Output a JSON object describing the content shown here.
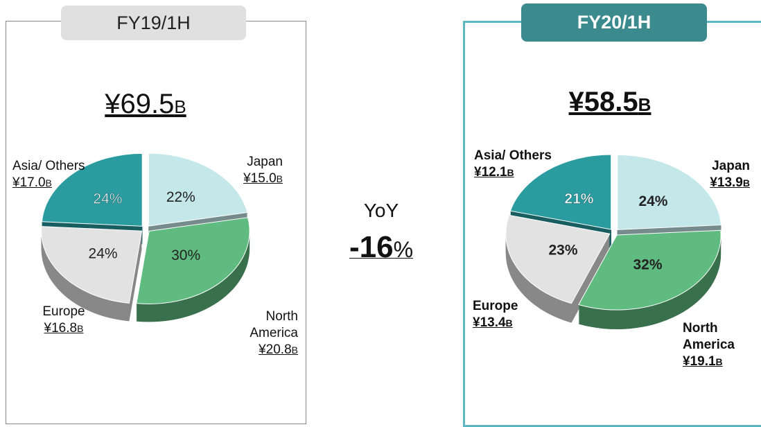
{
  "chart_data": [
    {
      "type": "pie",
      "title": "FY19/1H",
      "total": "¥69.5",
      "amount_unit": "B",
      "categories": [
        "Japan",
        "North America",
        "Europe",
        "Asia/ Others"
      ],
      "values": [
        22,
        30,
        24,
        24
      ],
      "value_labels": [
        "22%",
        "30%",
        "24%",
        "24%"
      ],
      "amounts": [
        "¥15.0",
        "¥20.8",
        "¥16.8",
        "¥17.0"
      ],
      "colors": [
        "#c4e7ea",
        "#5fbb80",
        "#e2e2e2",
        "#2a9ca0"
      ]
    },
    {
      "type": "pie",
      "title": "FY20/1H",
      "total": "¥58.5",
      "amount_unit": "B",
      "categories": [
        "Japan",
        "North America",
        "Europe",
        "Asia/ Others"
      ],
      "values": [
        24,
        32,
        23,
        21
      ],
      "value_labels": [
        "24%",
        "32%",
        "23%",
        "21%"
      ],
      "amounts": [
        "¥13.9",
        "¥19.1",
        "¥13.4",
        "¥12.1"
      ],
      "colors": [
        "#c4e7ea",
        "#5fbb80",
        "#e2e2e2",
        "#2a9ca0"
      ]
    }
  ],
  "yoy": {
    "label": "YoY",
    "value": "-16",
    "unit": "%"
  }
}
